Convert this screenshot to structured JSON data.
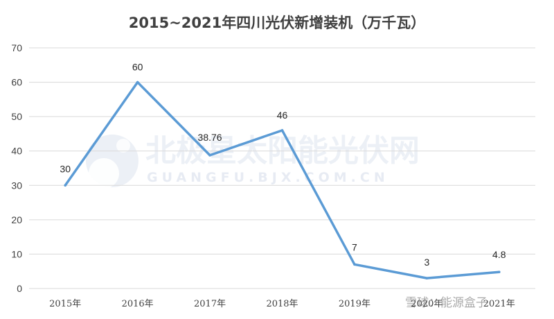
{
  "chart_data": {
    "type": "line",
    "title": "2015~2021年四川光伏新增装机（万千瓦）",
    "categories": [
      "2015年",
      "2016年",
      "2017年",
      "2018年",
      "2019年",
      "2020年",
      "2021年"
    ],
    "series": [
      {
        "values": [
          30,
          60,
          38.76,
          46,
          7,
          3,
          4.8
        ],
        "color": "#5b9bd5"
      }
    ],
    "data_labels": [
      "30",
      "60",
      "38.76",
      "46",
      "7",
      "3",
      "4.8"
    ],
    "ylim": [
      0,
      70
    ],
    "yticks": [
      0,
      10,
      20,
      30,
      40,
      50,
      60,
      70
    ],
    "xlabel": "",
    "ylabel": "",
    "grid": true,
    "legend": "none"
  },
  "watermark": {
    "brand": "北极星太阳能光伏网",
    "domain": "GUANGFU.BJX.COM.CN",
    "stamp": "雪球：能源盒子"
  },
  "colors": {
    "line": "#5b9bd5",
    "grid": "#d9d9d9",
    "text": "#404040"
  }
}
